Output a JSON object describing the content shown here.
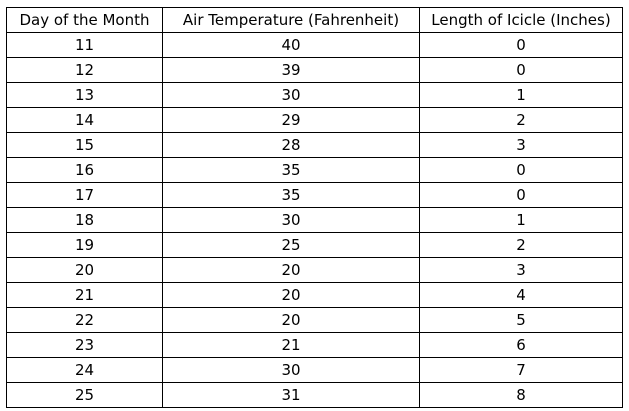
{
  "table": {
    "headers": [
      "Day of the Month",
      "Air Temperature (Fahrenheit)",
      "Length of Icicle (Inches)"
    ],
    "rows": [
      [
        "11",
        "40",
        "0"
      ],
      [
        "12",
        "39",
        "0"
      ],
      [
        "13",
        "30",
        "1"
      ],
      [
        "14",
        "29",
        "2"
      ],
      [
        "15",
        "28",
        "3"
      ],
      [
        "16",
        "35",
        "0"
      ],
      [
        "17",
        "35",
        "0"
      ],
      [
        "18",
        "30",
        "1"
      ],
      [
        "19",
        "25",
        "2"
      ],
      [
        "20",
        "20",
        "3"
      ],
      [
        "21",
        "20",
        "4"
      ],
      [
        "22",
        "20",
        "5"
      ],
      [
        "23",
        "21",
        "6"
      ],
      [
        "24",
        "30",
        "7"
      ],
      [
        "25",
        "31",
        "8"
      ]
    ]
  }
}
